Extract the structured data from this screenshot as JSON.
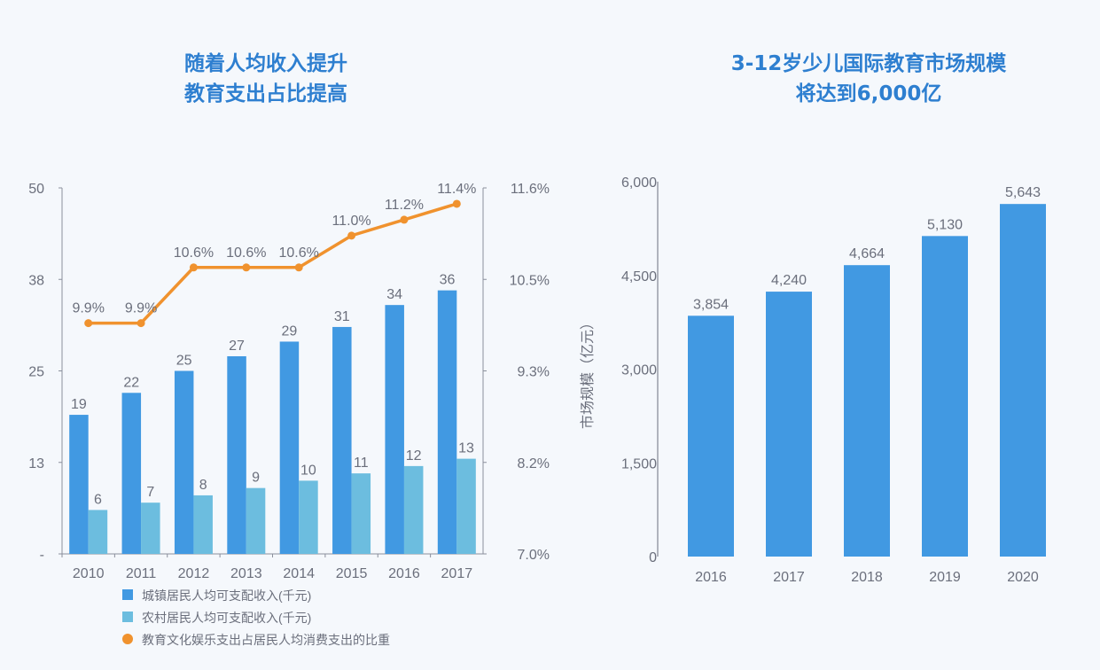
{
  "left_title": [
    "随着人均收入提升",
    "教育支出占比提高"
  ],
  "right_title": [
    "3-12岁少儿国际教育市场规模",
    "将达到6,000亿"
  ],
  "colors": {
    "urban": "#4199e2",
    "rural": "#6cbddf",
    "line": "#f0922e",
    "title": "#2e7fd0"
  },
  "chart_data": [
    {
      "type": "bar+line",
      "categories": [
        "2010",
        "2011",
        "2012",
        "2013",
        "2014",
        "2015",
        "2016",
        "2017"
      ],
      "y_left": {
        "ticks": [
          "-",
          "13",
          "25",
          "38",
          "50"
        ],
        "range": [
          0,
          50
        ]
      },
      "y_right": {
        "ticks": [
          "7.0%",
          "8.2%",
          "9.3%",
          "10.5%",
          "11.6%"
        ],
        "range": [
          7.0,
          11.6
        ]
      },
      "series": [
        {
          "name": "城镇居民人均可支配收入(千元)",
          "type": "bar",
          "axis": "left",
          "values": [
            19,
            22,
            25,
            27,
            29,
            31,
            34,
            36
          ]
        },
        {
          "name": "农村居民人均可支配收入(千元)",
          "type": "bar",
          "axis": "left",
          "values": [
            6,
            7,
            8,
            9,
            10,
            11,
            12,
            13
          ]
        },
        {
          "name": "教育文化娱乐支出占居民人均消费支出的比重",
          "type": "line",
          "axis": "right",
          "values": [
            9.9,
            9.9,
            10.6,
            10.6,
            10.6,
            11.0,
            11.2,
            11.4
          ],
          "labels": [
            "9.9%",
            "9.9%",
            "10.6%",
            "10.6%",
            "10.6%",
            "11.0%",
            "11.2%",
            "11.4%"
          ]
        }
      ],
      "legend": "bottom"
    },
    {
      "type": "bar",
      "categories": [
        "2016",
        "2017",
        "2018",
        "2019",
        "2020"
      ],
      "values": [
        3854,
        4240,
        4664,
        5130,
        5643
      ],
      "labels": [
        "3,854",
        "4,240",
        "4,664",
        "5,130",
        "5,643"
      ],
      "ylabel": "市场规模（亿元）",
      "y_ticks": [
        "0",
        "1,500",
        "3,000",
        "4,500",
        "6,000"
      ],
      "ylim": [
        0,
        6000
      ]
    }
  ]
}
